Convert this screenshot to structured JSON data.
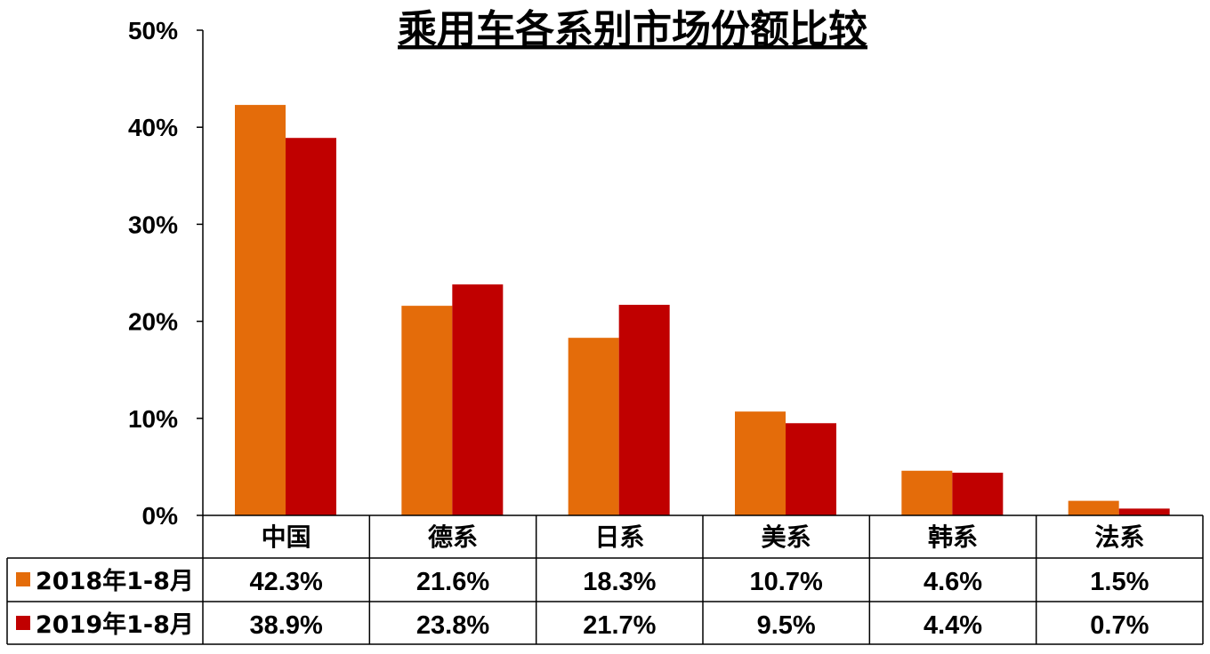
{
  "chart_data": {
    "type": "bar",
    "title": "乘用车各系别市场份额比较",
    "categories": [
      "中国",
      "德系",
      "日系",
      "美系",
      "韩系",
      "法系"
    ],
    "series": [
      {
        "name": "2018年1-8月",
        "color": "#E46C0A",
        "values": [
          42.3,
          21.6,
          18.3,
          10.7,
          4.6,
          1.5
        ],
        "labels": [
          "42.3%",
          "21.6%",
          "18.3%",
          "10.7%",
          "4.6%",
          "1.5%"
        ]
      },
      {
        "name": "2019年1-8月",
        "color": "#C00000",
        "values": [
          38.9,
          23.8,
          21.7,
          9.5,
          4.4,
          0.7
        ],
        "labels": [
          "38.9%",
          "23.8%",
          "21.7%",
          "9.5%",
          "4.4%",
          "0.7%"
        ]
      }
    ],
    "ylim": [
      0,
      50
    ],
    "yticks": [
      "0%",
      "10%",
      "20%",
      "30%",
      "40%",
      "50%"
    ],
    "data_table": true,
    "legend": "data-table-left",
    "grid": false
  }
}
